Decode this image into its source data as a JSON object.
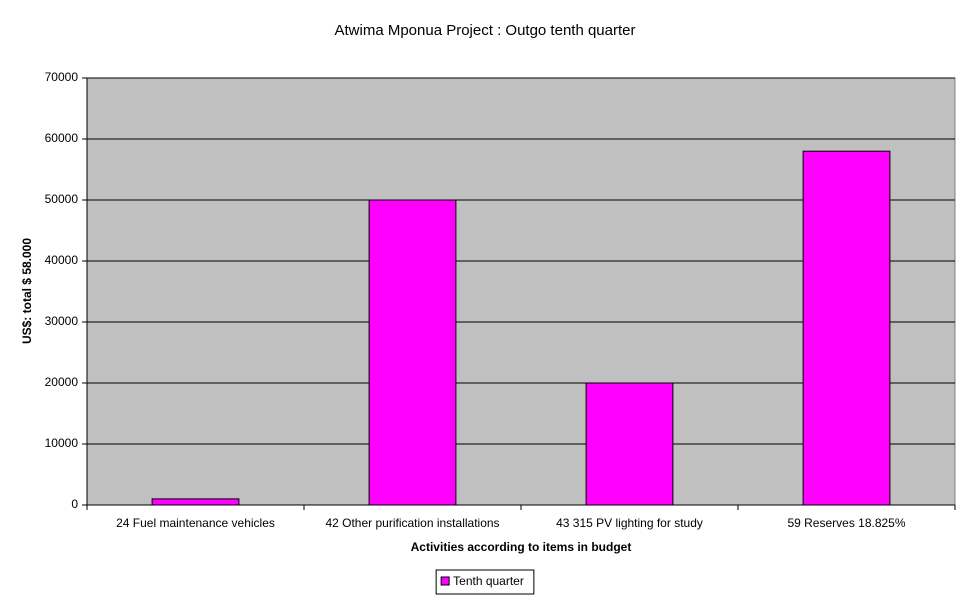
{
  "chart_data": {
    "type": "bar",
    "title": "Atwima Mponua Project : Outgo tenth quarter",
    "x_label": "Activities according to items in budget",
    "y_label": "US$: total $ 58.000",
    "categories": [
      "24 Fuel maintenance vehicles",
      "42 Other purification installations",
      "43 315 PV lighting for study",
      "59 Reserves 18.825%"
    ],
    "series": [
      {
        "name": "Tenth quarter",
        "color": "#ff00ff",
        "values": [
          1000,
          50000,
          20000,
          58000
        ]
      }
    ],
    "ylim": [
      0,
      70000
    ],
    "yticks": [
      0,
      10000,
      20000,
      30000,
      40000,
      50000,
      60000,
      70000
    ],
    "grid": true,
    "legend": "bottom"
  }
}
